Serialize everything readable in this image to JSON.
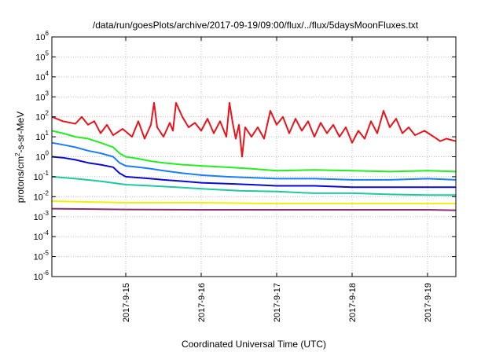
{
  "chart_data": {
    "type": "line",
    "title": "/data/run/goesPlots/archive/2017-09-19/09:00/flux/../flux/5daysMoonFluxes.txt",
    "xlabel": "Coordinated Universal Time (UTC)",
    "ylabel": {
      "base": "protons/cm",
      "sup": "2",
      "rest": "-s-sr-MeV"
    },
    "y_scale": "log",
    "ylim": [
      1e-06,
      1000000.0
    ],
    "xlim": [
      "2017-09-14 00:30",
      "2017-09-19 09:00"
    ],
    "x_ticks": [
      "2017-9-15",
      "2017-9-16",
      "2017-9-17",
      "2017-9-18",
      "2017-9-19"
    ],
    "y_ticks": [
      {
        "base": "10",
        "exp": "-6"
      },
      {
        "base": "10",
        "exp": "-5"
      },
      {
        "base": "10",
        "exp": "-4"
      },
      {
        "base": "10",
        "exp": "-3"
      },
      {
        "base": "10",
        "exp": "-2"
      },
      {
        "base": "10",
        "exp": "-1"
      },
      {
        "base": "10",
        "exp": "0"
      },
      {
        "base": "10",
        "exp": "1"
      },
      {
        "base": "10",
        "exp": "2"
      },
      {
        "base": "10",
        "exp": "3"
      },
      {
        "base": "10",
        "exp": "4"
      },
      {
        "base": "10",
        "exp": "5"
      },
      {
        "base": "10",
        "exp": "6"
      }
    ],
    "grid": true,
    "series": [
      {
        "color": "#e8141c",
        "values": [
          [
            "2017-09-14 00:30",
            100
          ],
          [
            "2017-09-14 04:00",
            60
          ],
          [
            "2017-09-14 08:00",
            45
          ],
          [
            "2017-09-14 10:00",
            100
          ],
          [
            "2017-09-14 12:00",
            40
          ],
          [
            "2017-09-14 14:00",
            60
          ],
          [
            "2017-09-14 16:00",
            15
          ],
          [
            "2017-09-14 18:00",
            40
          ],
          [
            "2017-09-14 20:00",
            12
          ],
          [
            "2017-09-14 23:00",
            25
          ],
          [
            "2017-09-15 02:00",
            10
          ],
          [
            "2017-09-15 04:00",
            60
          ],
          [
            "2017-09-15 06:00",
            8
          ],
          [
            "2017-09-15 08:00",
            40
          ],
          [
            "2017-09-15 09:00",
            500
          ],
          [
            "2017-09-15 10:00",
            30
          ],
          [
            "2017-09-15 12:00",
            10
          ],
          [
            "2017-09-15 14:00",
            50
          ],
          [
            "2017-09-15 15:00",
            20
          ],
          [
            "2017-09-15 16:00",
            500
          ],
          [
            "2017-09-15 18:00",
            100
          ],
          [
            "2017-09-15 20:00",
            30
          ],
          [
            "2017-09-15 22:00",
            50
          ],
          [
            "2017-09-16 00:00",
            20
          ],
          [
            "2017-09-16 02:00",
            80
          ],
          [
            "2017-09-16 04:00",
            15
          ],
          [
            "2017-09-16 06:00",
            60
          ],
          [
            "2017-09-16 08:00",
            10
          ],
          [
            "2017-09-16 09:00",
            500
          ],
          [
            "2017-09-16 10:00",
            50
          ],
          [
            "2017-09-16 11:00",
            8
          ],
          [
            "2017-09-16 12:00",
            40
          ],
          [
            "2017-09-16 13:00",
            1
          ],
          [
            "2017-09-16 14:00",
            30
          ],
          [
            "2017-09-16 16:00",
            10
          ],
          [
            "2017-09-16 18:00",
            30
          ],
          [
            "2017-09-16 20:00",
            8
          ],
          [
            "2017-09-16 22:00",
            200
          ],
          [
            "2017-09-17 00:00",
            40
          ],
          [
            "2017-09-17 02:00",
            100
          ],
          [
            "2017-09-17 04:00",
            15
          ],
          [
            "2017-09-17 06:00",
            80
          ],
          [
            "2017-09-17 08:00",
            20
          ],
          [
            "2017-09-17 10:00",
            60
          ],
          [
            "2017-09-17 12:00",
            10
          ],
          [
            "2017-09-17 14:00",
            50
          ],
          [
            "2017-09-17 16:00",
            15
          ],
          [
            "2017-09-17 18:00",
            40
          ],
          [
            "2017-09-17 20:00",
            10
          ],
          [
            "2017-09-17 22:00",
            30
          ],
          [
            "2017-09-18 00:00",
            5
          ],
          [
            "2017-09-18 02:00",
            20
          ],
          [
            "2017-09-18 04:00",
            8
          ],
          [
            "2017-09-18 06:00",
            60
          ],
          [
            "2017-09-18 08:00",
            15
          ],
          [
            "2017-09-18 10:00",
            200
          ],
          [
            "2017-09-18 12:00",
            30
          ],
          [
            "2017-09-18 14:00",
            80
          ],
          [
            "2017-09-18 16:00",
            15
          ],
          [
            "2017-09-18 18:00",
            30
          ],
          [
            "2017-09-18 20:00",
            12
          ],
          [
            "2017-09-18 23:00",
            20
          ],
          [
            "2017-09-19 02:00",
            10
          ],
          [
            "2017-09-19 04:00",
            6
          ],
          [
            "2017-09-19 06:00",
            8
          ],
          [
            "2017-09-19 09:00",
            6
          ]
        ]
      },
      {
        "color": "#22ee22",
        "values": [
          [
            "2017-09-14 00:30",
            20
          ],
          [
            "2017-09-14 04:00",
            15
          ],
          [
            "2017-09-14 08:00",
            10
          ],
          [
            "2017-09-14 12:00",
            8
          ],
          [
            "2017-09-14 16:00",
            5
          ],
          [
            "2017-09-14 20:00",
            3
          ],
          [
            "2017-09-14 22:00",
            1.5
          ],
          [
            "2017-09-15 00:00",
            1.0
          ],
          [
            "2017-09-15 04:00",
            0.8
          ],
          [
            "2017-09-15 08:00",
            0.6
          ],
          [
            "2017-09-15 12:00",
            0.5
          ],
          [
            "2017-09-15 18:00",
            0.4
          ],
          [
            "2017-09-16 00:00",
            0.35
          ],
          [
            "2017-09-16 08:00",
            0.3
          ],
          [
            "2017-09-16 16:00",
            0.25
          ],
          [
            "2017-09-17 00:00",
            0.2
          ],
          [
            "2017-09-17 12:00",
            0.22
          ],
          [
            "2017-09-18 00:00",
            0.2
          ],
          [
            "2017-09-18 12:00",
            0.18
          ],
          [
            "2017-09-19 00:00",
            0.2
          ],
          [
            "2017-09-19 09:00",
            0.18
          ]
        ]
      },
      {
        "color": "#1a7ef5",
        "values": [
          [
            "2017-09-14 00:30",
            5
          ],
          [
            "2017-09-14 04:00",
            4
          ],
          [
            "2017-09-14 08:00",
            3
          ],
          [
            "2017-09-14 12:00",
            2
          ],
          [
            "2017-09-14 16:00",
            1.5
          ],
          [
            "2017-09-14 20:00",
            1.0
          ],
          [
            "2017-09-14 22:00",
            0.5
          ],
          [
            "2017-09-15 00:00",
            0.35
          ],
          [
            "2017-09-15 04:00",
            0.3
          ],
          [
            "2017-09-15 08:00",
            0.25
          ],
          [
            "2017-09-15 12:00",
            0.2
          ],
          [
            "2017-09-15 18:00",
            0.15
          ],
          [
            "2017-09-16 00:00",
            0.12
          ],
          [
            "2017-09-16 08:00",
            0.1
          ],
          [
            "2017-09-16 16:00",
            0.09
          ],
          [
            "2017-09-17 00:00",
            0.08
          ],
          [
            "2017-09-17 12:00",
            0.08
          ],
          [
            "2017-09-18 00:00",
            0.07
          ],
          [
            "2017-09-18 12:00",
            0.07
          ],
          [
            "2017-09-19 00:00",
            0.08
          ],
          [
            "2017-09-19 09:00",
            0.07
          ]
        ]
      },
      {
        "color": "#0a0ad2",
        "values": [
          [
            "2017-09-14 00:30",
            1.0
          ],
          [
            "2017-09-14 04:00",
            0.9
          ],
          [
            "2017-09-14 08:00",
            0.7
          ],
          [
            "2017-09-14 12:00",
            0.5
          ],
          [
            "2017-09-14 16:00",
            0.4
          ],
          [
            "2017-09-14 20:00",
            0.3
          ],
          [
            "2017-09-14 22:00",
            0.15
          ],
          [
            "2017-09-15 00:00",
            0.1
          ],
          [
            "2017-09-15 04:00",
            0.09
          ],
          [
            "2017-09-15 08:00",
            0.08
          ],
          [
            "2017-09-15 12:00",
            0.07
          ],
          [
            "2017-09-15 18:00",
            0.06
          ],
          [
            "2017-09-16 00:00",
            0.05
          ],
          [
            "2017-09-16 08:00",
            0.045
          ],
          [
            "2017-09-16 16:00",
            0.04
          ],
          [
            "2017-09-17 00:00",
            0.035
          ],
          [
            "2017-09-17 12:00",
            0.035
          ],
          [
            "2017-09-18 00:00",
            0.03
          ],
          [
            "2017-09-18 12:00",
            0.03
          ],
          [
            "2017-09-19 00:00",
            0.03
          ],
          [
            "2017-09-19 09:00",
            0.03
          ]
        ]
      },
      {
        "color": "#1ec8a0",
        "values": [
          [
            "2017-09-14 00:30",
            0.1
          ],
          [
            "2017-09-14 08:00",
            0.08
          ],
          [
            "2017-09-14 16:00",
            0.06
          ],
          [
            "2017-09-15 00:00",
            0.04
          ],
          [
            "2017-09-15 08:00",
            0.035
          ],
          [
            "2017-09-15 16:00",
            0.03
          ],
          [
            "2017-09-16 00:00",
            0.025
          ],
          [
            "2017-09-16 12:00",
            0.02
          ],
          [
            "2017-09-17 00:00",
            0.018
          ],
          [
            "2017-09-17 12:00",
            0.015
          ],
          [
            "2017-09-18 00:00",
            0.015
          ],
          [
            "2017-09-18 12:00",
            0.013
          ],
          [
            "2017-09-19 00:00",
            0.012
          ],
          [
            "2017-09-19 09:00",
            0.012
          ]
        ]
      },
      {
        "color": "#f0f00a",
        "values": [
          [
            "2017-09-14 00:30",
            0.006
          ],
          [
            "2017-09-15 00:00",
            0.005
          ],
          [
            "2017-09-16 00:00",
            0.005
          ],
          [
            "2017-09-17 00:00",
            0.0045
          ],
          [
            "2017-09-18 00:00",
            0.0045
          ],
          [
            "2017-09-19 00:00",
            0.0045
          ],
          [
            "2017-09-19 09:00",
            0.0045
          ]
        ]
      },
      {
        "color": "#8c2d6e",
        "values": [
          [
            "2017-09-14 00:30",
            0.0025
          ],
          [
            "2017-09-15 00:00",
            0.0023
          ],
          [
            "2017-09-16 00:00",
            0.0022
          ],
          [
            "2017-09-17 00:00",
            0.0022
          ],
          [
            "2017-09-18 00:00",
            0.0022
          ],
          [
            "2017-09-19 00:00",
            0.0022
          ],
          [
            "2017-09-19 09:00",
            0.0021
          ]
        ]
      }
    ]
  }
}
